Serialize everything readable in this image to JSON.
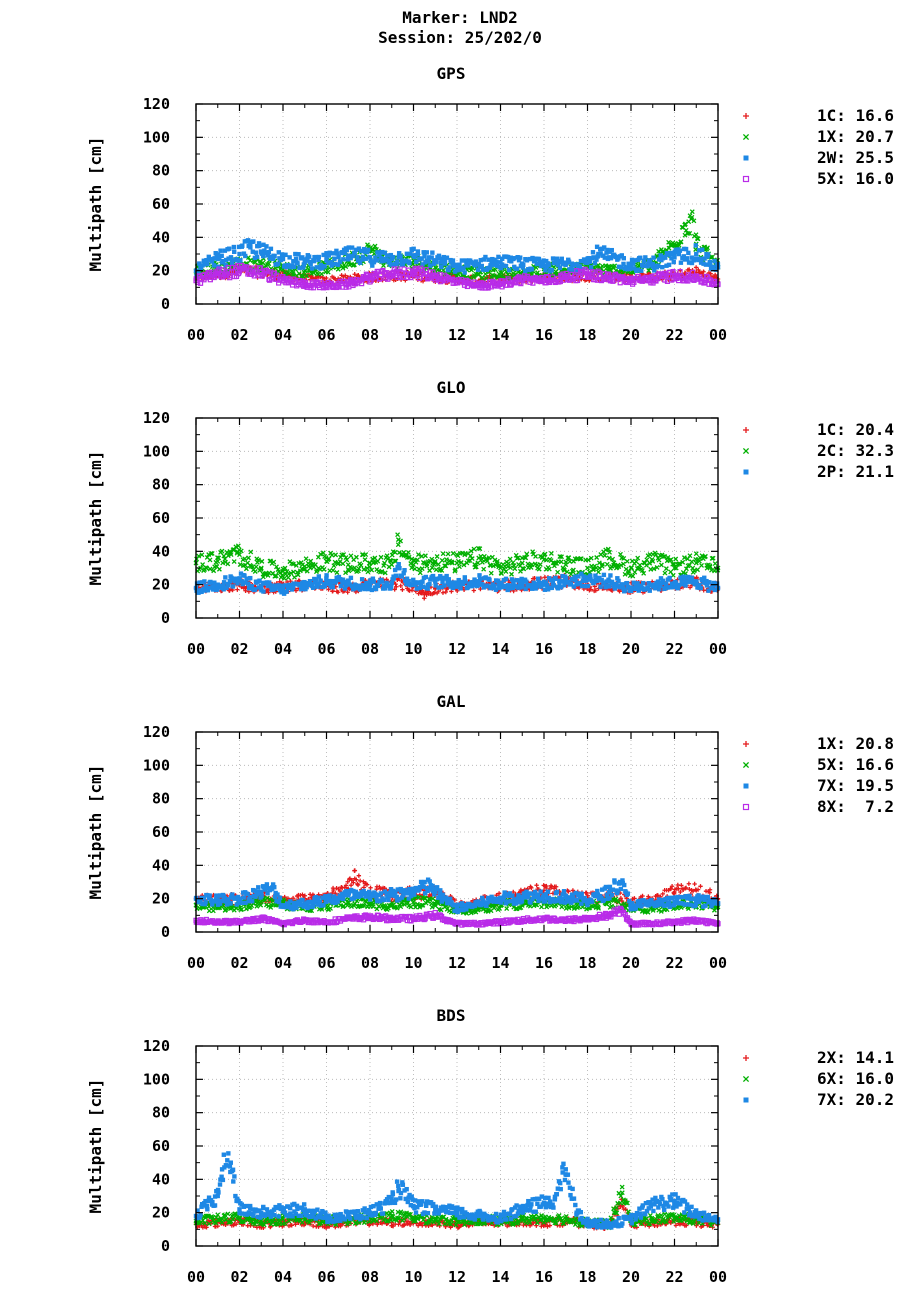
{
  "header": {
    "marker": "Marker: LND2",
    "session": "Session: 25/202/0"
  },
  "chart_data": [
    {
      "type": "scatter",
      "title": "GPS",
      "ylabel": "Multipath [cm]",
      "xlabel": "",
      "ylim": [
        0,
        120
      ],
      "xlim": [
        0,
        24
      ],
      "yticks": [
        "0",
        "20",
        "40",
        "60",
        "80",
        "100",
        "120"
      ],
      "xticks": [
        "00",
        "02",
        "04",
        "06",
        "08",
        "10",
        "12",
        "14",
        "16",
        "18",
        "20",
        "22",
        "00"
      ],
      "grid": true,
      "legend": "right",
      "series": [
        {
          "name": "1C: 16.6",
          "marker": "plus",
          "color": "#e41a1c",
          "x": [
            0,
            1,
            2,
            3,
            4,
            5,
            6,
            7,
            8,
            9,
            10,
            11,
            12,
            13,
            14,
            15,
            16,
            17,
            18,
            19,
            20,
            21,
            22,
            23,
            24
          ],
          "y": [
            16,
            18,
            20,
            19,
            17,
            15,
            14,
            15,
            16,
            17,
            17,
            16,
            15,
            14,
            15,
            15,
            16,
            16,
            17,
            17,
            16,
            16,
            17,
            19,
            15
          ]
        },
        {
          "name": "1X: 20.7",
          "marker": "cross",
          "color": "#00b000",
          "x": [
            0,
            1,
            2,
            3,
            4,
            5,
            6,
            7,
            8,
            9,
            10,
            11,
            12,
            13,
            14,
            15,
            16,
            17,
            18,
            19,
            20,
            21,
            22,
            22.5,
            22.8,
            23,
            24
          ],
          "y": [
            20,
            22,
            24,
            24,
            21,
            20,
            22,
            26,
            32,
            25,
            26,
            22,
            20,
            18,
            19,
            18,
            21,
            20,
            22,
            20,
            21,
            24,
            36,
            48,
            52,
            36,
            22
          ]
        },
        {
          "name": "2W: 25.5",
          "marker": "square",
          "color": "#1e88e5",
          "x": [
            0,
            1,
            2,
            2.5,
            3,
            4,
            5,
            6,
            7,
            8,
            9,
            10,
            11,
            12,
            13,
            14,
            15,
            16,
            17,
            18,
            18.5,
            19,
            20,
            21,
            22,
            23,
            24
          ],
          "y": [
            20,
            27,
            30,
            34,
            31,
            27,
            25,
            26,
            29,
            28,
            27,
            29,
            26,
            22,
            24,
            25,
            24,
            23,
            24,
            25,
            30,
            28,
            24,
            24,
            28,
            30,
            22
          ]
        },
        {
          "name": "5X: 16.0",
          "marker": "opensquare",
          "color": "#b92ce8",
          "x": [
            0,
            1,
            2,
            3,
            4,
            5,
            6,
            7,
            8,
            9,
            10,
            11,
            12,
            13,
            14,
            15,
            16,
            17,
            18,
            19,
            20,
            21,
            22,
            23,
            24
          ],
          "y": [
            14,
            18,
            20,
            19,
            14,
            12,
            11,
            12,
            16,
            18,
            19,
            17,
            13,
            11,
            12,
            15,
            14,
            16,
            18,
            16,
            14,
            15,
            17,
            16,
            12
          ]
        }
      ]
    },
    {
      "type": "scatter",
      "title": "GLO",
      "ylabel": "Multipath [cm]",
      "xlabel": "",
      "ylim": [
        0,
        120
      ],
      "xlim": [
        0,
        24
      ],
      "yticks": [
        "0",
        "20",
        "40",
        "60",
        "80",
        "100",
        "120"
      ],
      "xticks": [
        "00",
        "02",
        "04",
        "06",
        "08",
        "10",
        "12",
        "14",
        "16",
        "18",
        "20",
        "22",
        "00"
      ],
      "grid": true,
      "legend": "right",
      "series": [
        {
          "name": "1C: 20.4",
          "marker": "plus",
          "color": "#e41a1c",
          "x": [
            0,
            1,
            2,
            3,
            4,
            5,
            6,
            7,
            8,
            9,
            10,
            10.5,
            11,
            12,
            13,
            14,
            15,
            16,
            17,
            18,
            19,
            20,
            21,
            22,
            23,
            24
          ],
          "y": [
            18,
            19,
            20,
            18,
            19,
            20,
            19,
            18,
            20,
            21,
            19,
            14,
            18,
            19,
            20,
            19,
            20,
            21,
            22,
            20,
            19,
            18,
            19,
            20,
            21,
            18
          ]
        },
        {
          "name": "2C: 32.3",
          "marker": "cross",
          "color": "#00b000",
          "x": [
            0,
            1,
            2,
            3,
            4,
            5,
            6,
            7,
            8,
            9,
            9.3,
            10,
            11,
            12,
            13,
            14,
            15,
            16,
            17,
            18,
            19,
            20,
            21,
            22,
            23,
            24
          ],
          "y": [
            33,
            34,
            38,
            30,
            28,
            31,
            34,
            32,
            33,
            32,
            44,
            32,
            34,
            33,
            36,
            30,
            33,
            35,
            32,
            30,
            36,
            30,
            34,
            30,
            33,
            30
          ]
        },
        {
          "name": "2P: 21.1",
          "marker": "square",
          "color": "#1e88e5",
          "x": [
            0,
            1,
            2,
            3,
            4,
            5,
            6,
            7,
            8,
            9,
            9.3,
            10,
            11,
            12,
            13,
            14,
            15,
            16,
            17,
            18,
            19,
            20,
            21,
            22,
            23,
            24
          ],
          "y": [
            18,
            20,
            23,
            19,
            17,
            20,
            22,
            21,
            20,
            21,
            30,
            20,
            22,
            21,
            22,
            20,
            21,
            20,
            22,
            23,
            22,
            18,
            20,
            21,
            22,
            18
          ]
        }
      ]
    },
    {
      "type": "scatter",
      "title": "GAL",
      "ylabel": "Multipath [cm]",
      "xlabel": "",
      "ylim": [
        0,
        120
      ],
      "xlim": [
        0,
        24
      ],
      "yticks": [
        "0",
        "20",
        "40",
        "60",
        "80",
        "100",
        "120"
      ],
      "xticks": [
        "00",
        "02",
        "04",
        "06",
        "08",
        "10",
        "12",
        "14",
        "16",
        "18",
        "20",
        "22",
        "00"
      ],
      "grid": true,
      "legend": "right",
      "series": [
        {
          "name": "1X: 20.8",
          "marker": "plus",
          "color": "#e41a1c",
          "x": [
            0,
            1,
            2,
            3,
            4,
            5,
            6,
            7,
            7.3,
            8,
            9,
            10,
            11,
            12,
            13,
            14,
            15,
            16,
            17,
            18,
            19,
            20,
            21,
            22,
            23,
            24
          ],
          "y": [
            20,
            19,
            20,
            21,
            18,
            20,
            21,
            26,
            32,
            24,
            22,
            23,
            24,
            16,
            18,
            20,
            22,
            25,
            22,
            20,
            22,
            18,
            19,
            24,
            25,
            20
          ]
        },
        {
          "name": "5X: 16.6",
          "marker": "cross",
          "color": "#00b000",
          "x": [
            0,
            1,
            2,
            3,
            4,
            5,
            6,
            7,
            8,
            9,
            10,
            11,
            12,
            13,
            14,
            15,
            16,
            17,
            18,
            19,
            20,
            21,
            22,
            23,
            24
          ],
          "y": [
            16,
            15,
            16,
            18,
            17,
            15,
            16,
            18,
            17,
            16,
            18,
            17,
            13,
            14,
            16,
            17,
            18,
            17,
            16,
            18,
            15,
            14,
            16,
            17,
            15
          ]
        },
        {
          "name": "7X: 19.5",
          "marker": "square",
          "color": "#1e88e5",
          "x": [
            0,
            1,
            2,
            3,
            3.5,
            4,
            5,
            6,
            7,
            8,
            9,
            10,
            10.8,
            11,
            12,
            13,
            14,
            15,
            16,
            17,
            18,
            19,
            19.5,
            20,
            21,
            22,
            23,
            24
          ],
          "y": [
            20,
            19,
            20,
            24,
            26,
            16,
            17,
            19,
            22,
            21,
            22,
            24,
            28,
            24,
            14,
            17,
            20,
            21,
            22,
            21,
            19,
            24,
            30,
            16,
            17,
            18,
            19,
            17
          ]
        },
        {
          "name": "8X:  7.2",
          "marker": "opensquare",
          "color": "#b92ce8",
          "x": [
            0,
            1,
            2,
            3,
            4,
            5,
            6,
            7,
            8,
            9,
            10,
            11,
            12,
            13,
            14,
            15,
            16,
            17,
            18,
            19,
            19.5,
            20,
            21,
            22,
            23,
            24
          ],
          "y": [
            7,
            6,
            6,
            8,
            5,
            7,
            6,
            8,
            9,
            8,
            8,
            10,
            5,
            5,
            6,
            7,
            8,
            7,
            8,
            10,
            13,
            5,
            5,
            6,
            7,
            5
          ]
        }
      ]
    },
    {
      "type": "scatter",
      "title": "BDS",
      "ylabel": "Multipath [cm]",
      "xlabel": "",
      "ylim": [
        0,
        120
      ],
      "xlim": [
        0,
        24
      ],
      "yticks": [
        "0",
        "20",
        "40",
        "60",
        "80",
        "100",
        "120"
      ],
      "xticks": [
        "00",
        "02",
        "04",
        "06",
        "08",
        "10",
        "12",
        "14",
        "16",
        "18",
        "20",
        "22",
        "00"
      ],
      "grid": true,
      "legend": "right",
      "series": [
        {
          "name": "2X: 14.1",
          "marker": "plus",
          "color": "#e41a1c",
          "x": [
            0,
            1,
            2,
            3,
            4,
            5,
            6,
            7,
            8,
            9,
            10,
            11,
            12,
            13,
            14,
            15,
            16,
            17,
            18,
            19,
            19.6,
            20,
            21,
            22,
            23,
            24
          ],
          "y": [
            13,
            14,
            15,
            13,
            14,
            15,
            13,
            14,
            15,
            14,
            15,
            14,
            13,
            14,
            14,
            15,
            14,
            15,
            13,
            12,
            28,
            13,
            14,
            15,
            14,
            13
          ]
        },
        {
          "name": "6X: 16.0",
          "marker": "cross",
          "color": "#00b000",
          "x": [
            0,
            1,
            2,
            3,
            4,
            5,
            6,
            7,
            8,
            9,
            10,
            11,
            12,
            13,
            14,
            15,
            16,
            17,
            18,
            19,
            19.6,
            20,
            21,
            22,
            23,
            24
          ],
          "y": [
            15,
            16,
            17,
            15,
            16,
            17,
            15,
            16,
            17,
            18,
            17,
            16,
            15,
            16,
            15,
            16,
            17,
            16,
            14,
            13,
            32,
            15,
            16,
            17,
            16,
            14
          ]
        },
        {
          "name": "7X: 20.2",
          "marker": "square",
          "color": "#1e88e5",
          "x": [
            0,
            0.5,
            1,
            1.2,
            1.6,
            2,
            3,
            4,
            5,
            6,
            7,
            8,
            9,
            9.3,
            10,
            11,
            12,
            13,
            14,
            15,
            16,
            16.5,
            17,
            17.5,
            18,
            19,
            20,
            21,
            22,
            23,
            24
          ],
          "y": [
            18,
            24,
            30,
            46,
            50,
            22,
            20,
            21,
            22,
            17,
            18,
            20,
            26,
            36,
            24,
            22,
            20,
            18,
            17,
            22,
            26,
            28,
            46,
            20,
            14,
            13,
            16,
            25,
            27,
            19,
            16
          ]
        }
      ]
    }
  ]
}
